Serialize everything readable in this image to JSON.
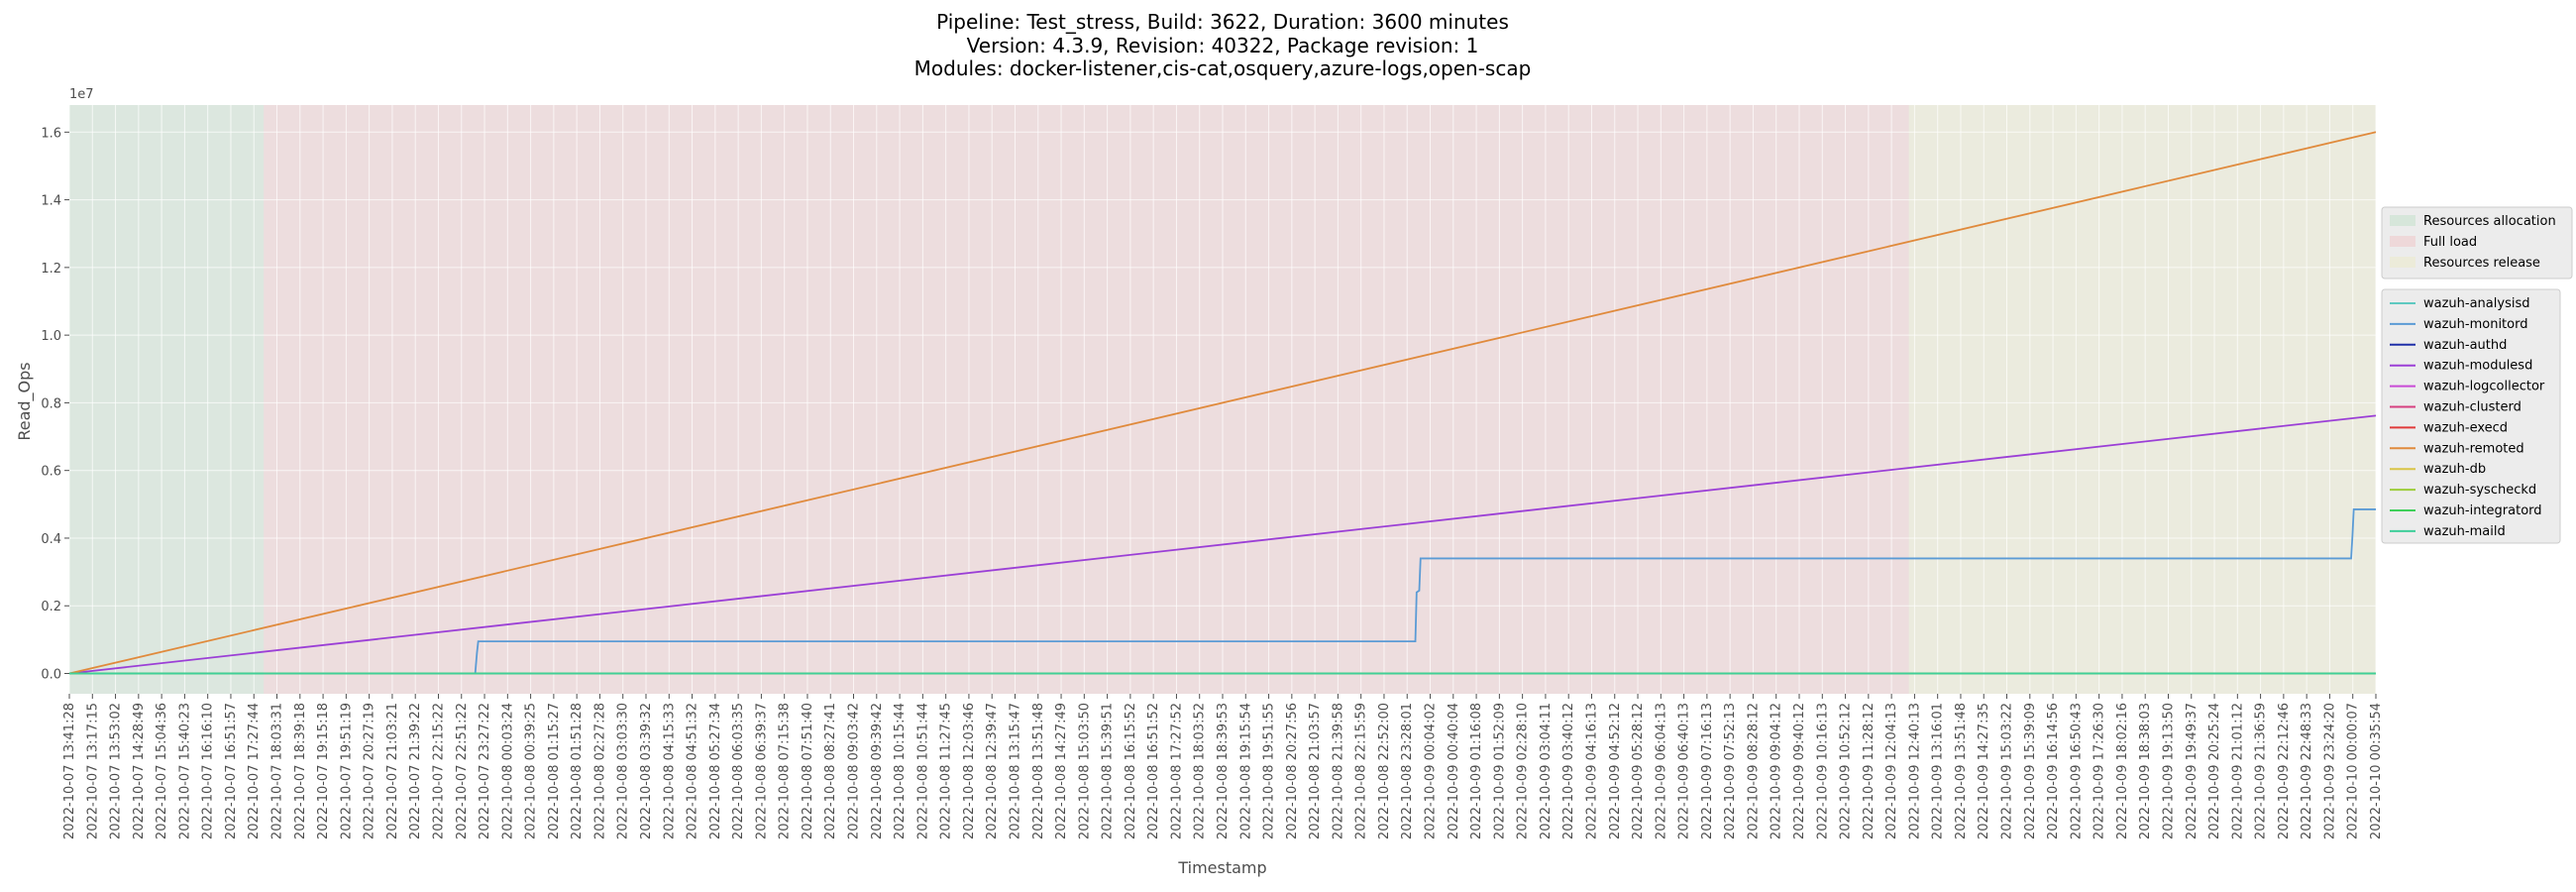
{
  "chart_data": {
    "type": "line",
    "title_lines": [
      "Pipeline: Test_stress, Build: 3622, Duration: 3600 minutes",
      "Version: 4.3.9, Revision: 40322, Package revision: 1",
      "Modules: docker-listener,cis-cat,osquery,azure-logs,open-scap"
    ],
    "xlabel": "Timestamp",
    "ylabel": "Read_Ops",
    "y_offset_text": "1e7",
    "ylim": [
      -0.06,
      1.68
    ],
    "y_ticks": [
      0.0,
      0.2,
      0.4,
      0.6,
      0.8,
      1.0,
      1.2,
      1.4,
      1.6
    ],
    "y_tick_labels": [
      "0.0",
      "0.2",
      "0.4",
      "0.6",
      "0.8",
      "1.0",
      "1.2",
      "1.4",
      "1.6"
    ],
    "x_start": "2022-10-07 13:41:28",
    "x_end": "2022-10-10 00:35:54",
    "x_tick_labels": [
      "2022-10-07 13:41:28",
      "2022-10-07 13:17:15",
      "2022-10-07 13:53:02",
      "2022-10-07 14:28:49",
      "2022-10-07 15:04:36",
      "2022-10-07 15:40:23",
      "2022-10-07 16:16:10",
      "2022-10-07 16:51:57",
      "2022-10-07 17:27:44",
      "2022-10-07 18:03:31",
      "2022-10-07 18:39:18",
      "2022-10-07 19:15:18",
      "2022-10-07 19:51:19",
      "2022-10-07 20:27:19",
      "2022-10-07 21:03:21",
      "2022-10-07 21:39:22",
      "2022-10-07 22:15:22",
      "2022-10-07 22:51:22",
      "2022-10-07 23:27:22",
      "2022-10-08 00:03:24",
      "2022-10-08 00:39:25",
      "2022-10-08 01:15:27",
      "2022-10-08 01:51:28",
      "2022-10-08 02:27:28",
      "2022-10-08 03:03:30",
      "2022-10-08 03:39:32",
      "2022-10-08 04:15:33",
      "2022-10-08 04:51:32",
      "2022-10-08 05:27:34",
      "2022-10-08 06:03:35",
      "2022-10-08 06:39:37",
      "2022-10-08 07:15:38",
      "2022-10-08 07:51:40",
      "2022-10-08 08:27:41",
      "2022-10-08 09:03:42",
      "2022-10-08 09:39:42",
      "2022-10-08 10:15:44",
      "2022-10-08 10:51:44",
      "2022-10-08 11:27:45",
      "2022-10-08 12:03:46",
      "2022-10-08 12:39:47",
      "2022-10-08 13:15:47",
      "2022-10-08 13:51:48",
      "2022-10-08 14:27:49",
      "2022-10-08 15:03:50",
      "2022-10-08 15:39:51",
      "2022-10-08 16:15:52",
      "2022-10-08 16:51:52",
      "2022-10-08 17:27:52",
      "2022-10-08 18:03:52",
      "2022-10-08 18:39:53",
      "2022-10-08 19:15:54",
      "2022-10-08 19:51:55",
      "2022-10-08 20:27:56",
      "2022-10-08 21:03:57",
      "2022-10-08 21:39:58",
      "2022-10-08 22:15:59",
      "2022-10-08 22:52:00",
      "2022-10-08 23:28:01",
      "2022-10-09 00:04:02",
      "2022-10-09 00:40:04",
      "2022-10-09 01:16:08",
      "2022-10-09 01:52:09",
      "2022-10-09 02:28:10",
      "2022-10-09 03:04:11",
      "2022-10-09 03:40:12",
      "2022-10-09 04:16:13",
      "2022-10-09 04:52:12",
      "2022-10-09 05:28:12",
      "2022-10-09 06:04:13",
      "2022-10-09 06:40:13",
      "2022-10-09 07:16:13",
      "2022-10-09 07:52:13",
      "2022-10-09 08:28:12",
      "2022-10-09 09:04:12",
      "2022-10-09 09:40:12",
      "2022-10-09 10:16:13",
      "2022-10-09 10:52:12",
      "2022-10-09 11:28:12",
      "2022-10-09 12:04:13",
      "2022-10-09 12:40:13",
      "2022-10-09 13:16:01",
      "2022-10-09 13:51:48",
      "2022-10-09 14:27:35",
      "2022-10-09 15:03:22",
      "2022-10-09 15:39:09",
      "2022-10-09 16:14:56",
      "2022-10-09 16:50:43",
      "2022-10-09 17:26:30",
      "2022-10-09 18:02:16",
      "2022-10-09 18:38:03",
      "2022-10-09 19:13:50",
      "2022-10-09 19:49:37",
      "2022-10-09 20:25:24",
      "2022-10-09 21:01:12",
      "2022-10-09 21:36:59",
      "2022-10-09 22:12:46",
      "2022-10-09 22:48:33",
      "2022-10-09 23:24:20",
      "2022-10-10 00:00:07",
      "2022-10-10 00:35:54"
    ],
    "phases": [
      {
        "name": "Resources allocation",
        "start": "2022-10-07 13:41:28",
        "end": "2022-10-07 18:39:18",
        "color": "#bfe0c8"
      },
      {
        "name": "Full load",
        "start": "2022-10-07 18:39:18",
        "end": "2022-10-09 12:40:13",
        "color": "#f0c4c6"
      },
      {
        "name": "Resources release",
        "start": "2022-10-09 12:40:13",
        "end": "2022-10-10 00:35:54",
        "color": "#eceac6"
      }
    ],
    "series": [
      {
        "name": "wazuh-analysisd",
        "color": "#5fc9c1",
        "points": [
          [
            "2022-10-07 13:41:28",
            0.0
          ],
          [
            "2022-10-10 00:35:54",
            0.0
          ]
        ]
      },
      {
        "name": "wazuh-monitord",
        "color": "#5b9bd5",
        "points": [
          [
            "2022-10-07 13:41:28",
            0.0
          ],
          [
            "2022-10-08 00:03:24",
            0.0
          ],
          [
            "2022-10-08 00:06:00",
            0.06
          ],
          [
            "2022-10-08 00:08:00",
            0.095
          ],
          [
            "2022-10-09 00:04:02",
            0.095
          ],
          [
            "2022-10-09 00:06:00",
            0.24
          ],
          [
            "2022-10-09 00:10:00",
            0.245
          ],
          [
            "2022-10-09 00:12:00",
            0.34
          ],
          [
            "2022-10-09 23:58:00",
            0.34
          ],
          [
            "2022-10-10 00:00:07",
            0.41
          ],
          [
            "2022-10-10 00:02:00",
            0.485
          ],
          [
            "2022-10-10 00:35:54",
            0.485
          ]
        ]
      },
      {
        "name": "wazuh-authd",
        "color": "#1f2fa8",
        "points": [
          [
            "2022-10-07 13:41:28",
            0.0
          ],
          [
            "2022-10-10 00:35:54",
            0.0
          ]
        ]
      },
      {
        "name": "wazuh-modulesd",
        "color": "#9b3fd6",
        "points": [
          [
            "2022-10-07 13:41:28",
            0.0
          ],
          [
            "2022-10-10 00:35:54",
            0.762
          ]
        ]
      },
      {
        "name": "wazuh-logcollector",
        "color": "#c94ad6",
        "points": [
          [
            "2022-10-07 13:41:28",
            0.0
          ],
          [
            "2022-10-10 00:35:54",
            0.0
          ]
        ]
      },
      {
        "name": "wazuh-clusterd",
        "color": "#d63f80",
        "points": [
          [
            "2022-10-07 13:41:28",
            0.0
          ],
          [
            "2022-10-10 00:35:54",
            0.0
          ]
        ]
      },
      {
        "name": "wazuh-execd",
        "color": "#e03a3a",
        "points": [
          [
            "2022-10-07 13:41:28",
            0.0
          ],
          [
            "2022-10-10 00:35:54",
            0.0
          ]
        ]
      },
      {
        "name": "wazuh-remoted",
        "color": "#e08a3c",
        "points": [
          [
            "2022-10-07 13:41:28",
            0.0
          ],
          [
            "2022-10-10 00:35:54",
            1.6
          ]
        ]
      },
      {
        "name": "wazuh-db",
        "color": "#d9c447",
        "points": [
          [
            "2022-10-07 13:41:28",
            0.0
          ],
          [
            "2022-10-10 00:35:54",
            0.0
          ]
        ]
      },
      {
        "name": "wazuh-syscheckd",
        "color": "#9ccc3a",
        "points": [
          [
            "2022-10-07 13:41:28",
            0.0
          ],
          [
            "2022-10-10 00:35:54",
            0.0
          ]
        ]
      },
      {
        "name": "wazuh-integratord",
        "color": "#3fcf5a",
        "points": [
          [
            "2022-10-07 13:41:28",
            0.0
          ],
          [
            "2022-10-10 00:35:54",
            0.0
          ]
        ]
      },
      {
        "name": "wazuh-maild",
        "color": "#3fcf9a",
        "points": [
          [
            "2022-10-07 13:41:28",
            0.0
          ],
          [
            "2022-10-10 00:35:54",
            0.0
          ]
        ]
      }
    ],
    "grid": true,
    "legend_placement": "right",
    "background_color": "#ebebeb",
    "grid_color": "#ffffff"
  }
}
